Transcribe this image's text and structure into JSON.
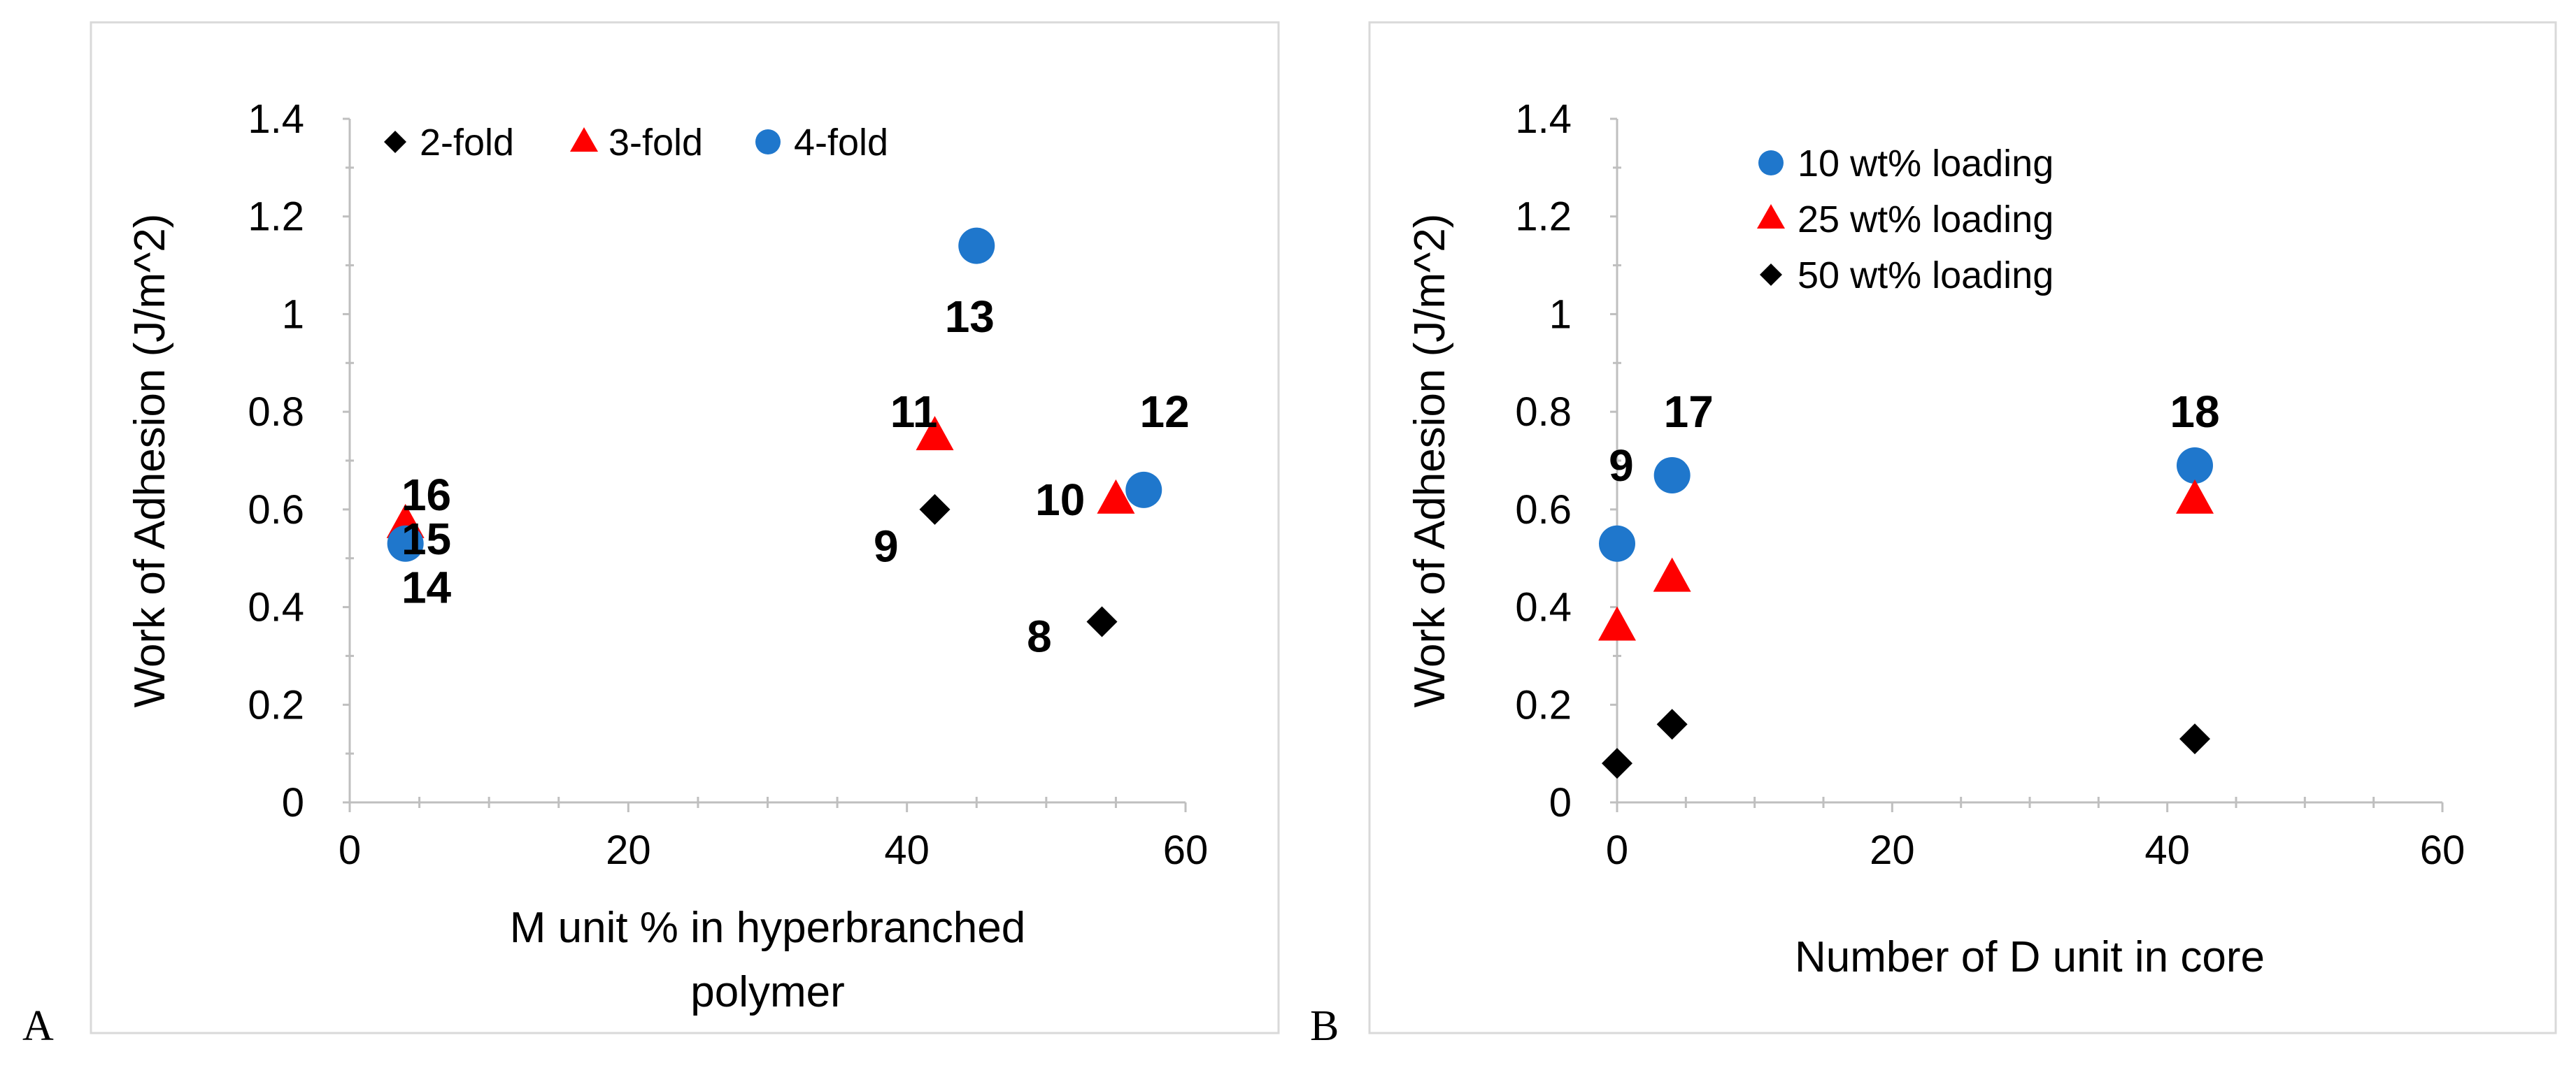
{
  "chart_data": [
    {
      "panel": "A",
      "type": "scatter",
      "xlabel": "M unit % in hyperbranched polymer",
      "xlabel_lines": [
        "M unit % in hyperbranched",
        "polymer"
      ],
      "ylabel": "Work of Adhesion (J/m^2)",
      "xlim": [
        0,
        60
      ],
      "ylim": [
        0,
        1.4
      ],
      "xticks": [
        0,
        20,
        40,
        60
      ],
      "yticks": [
        0,
        0.2,
        0.4,
        0.6,
        0.8,
        1,
        1.2,
        1.4
      ],
      "ytick_labels": [
        "0",
        "0.2",
        "0.4",
        "0.6",
        "0.8",
        "1",
        "1.2",
        "1.4"
      ],
      "legend_position": "top-left",
      "series": [
        {
          "name": "2-fold",
          "marker": "diamond",
          "color": "#000000",
          "points": [
            {
              "x": 42,
              "y": 0.6
            },
            {
              "x": 54,
              "y": 0.37
            }
          ]
        },
        {
          "name": "3-fold",
          "marker": "triangle",
          "color": "#ff0000",
          "points": [
            {
              "x": 4,
              "y": 0.57
            },
            {
              "x": 42,
              "y": 0.75
            },
            {
              "x": 55,
              "y": 0.62
            }
          ]
        },
        {
          "name": "4-fold",
          "marker": "circle",
          "color": "#1f77cc",
          "points": [
            {
              "x": 4,
              "y": 0.53
            },
            {
              "x": 45,
              "y": 1.14
            },
            {
              "x": 57,
              "y": 0.64
            }
          ]
        }
      ],
      "annotations": [
        {
          "text": "16",
          "x": 5.5,
          "y": 0.63
        },
        {
          "text": "15",
          "x": 5.5,
          "y": 0.54
        },
        {
          "text": "14",
          "x": 5.5,
          "y": 0.44
        },
        {
          "text": "13",
          "x": 44.5,
          "y": 0.995
        },
        {
          "text": "11",
          "x": 40.5,
          "y": 0.8
        },
        {
          "text": "12",
          "x": 58.5,
          "y": 0.8
        },
        {
          "text": "10",
          "x": 51,
          "y": 0.62
        },
        {
          "text": "9",
          "x": 38.5,
          "y": 0.525
        },
        {
          "text": "8",
          "x": 49.5,
          "y": 0.34
        }
      ]
    },
    {
      "panel": "B",
      "type": "scatter",
      "xlabel": "Number of D unit in core",
      "xlabel_lines": [
        "Number of D unit in core"
      ],
      "ylabel": "Work of Adhesion (J/m^2)",
      "xlim": [
        0,
        60
      ],
      "ylim": [
        0,
        1.4
      ],
      "xticks": [
        0,
        20,
        40,
        60
      ],
      "yticks": [
        0,
        0.2,
        0.4,
        0.6,
        0.8,
        1,
        1.2,
        1.4
      ],
      "ytick_labels": [
        "0",
        "0.2",
        "0.4",
        "0.6",
        "0.8",
        "1",
        "1.2",
        "1.4"
      ],
      "legend_position": "top-left",
      "series": [
        {
          "name": "10 wt% loading",
          "marker": "circle",
          "color": "#1f77cc",
          "points": [
            {
              "x": 0,
              "y": 0.53
            },
            {
              "x": 4,
              "y": 0.67
            },
            {
              "x": 42,
              "y": 0.69
            }
          ]
        },
        {
          "name": "25 wt% loading",
          "marker": "triangle",
          "color": "#ff0000",
          "points": [
            {
              "x": 0,
              "y": 0.36
            },
            {
              "x": 4,
              "y": 0.46
            },
            {
              "x": 42,
              "y": 0.62
            }
          ]
        },
        {
          "name": "50 wt% loading",
          "marker": "diamond",
          "color": "#000000",
          "points": [
            {
              "x": 0,
              "y": 0.08
            },
            {
              "x": 4,
              "y": 0.16
            },
            {
              "x": 42,
              "y": 0.13
            }
          ]
        }
      ],
      "annotations": [
        {
          "text": "17",
          "x": 5.2,
          "y": 0.8
        },
        {
          "text": "18",
          "x": 42,
          "y": 0.8
        },
        {
          "text": "9",
          "x": 0.3,
          "y": 0.69
        }
      ]
    }
  ]
}
